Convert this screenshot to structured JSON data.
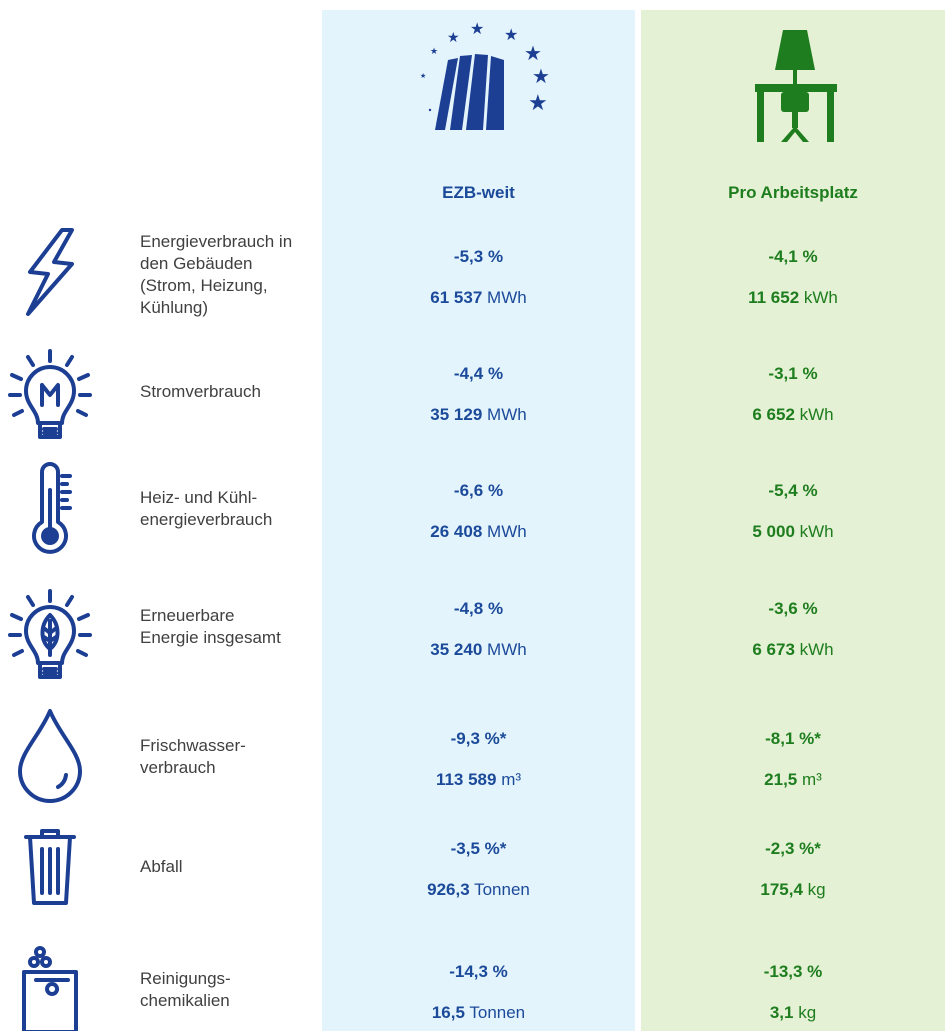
{
  "columns": [
    "EZB-weit",
    "Pro Arbeitsplatz"
  ],
  "rows": [
    {
      "label": [
        "Energieverbrauch in",
        "den Gebäuden",
        "(Strom, Heizung,",
        "Kühlung)"
      ],
      "ezb": {
        "change": "-5,3 %",
        "amount": "61 537",
        "unit": "MWh"
      },
      "per": {
        "change": "-4,1 %",
        "amount": "11 652",
        "unit": "kWh"
      }
    },
    {
      "label": [
        "Stromverbrauch"
      ],
      "ezb": {
        "change": "-4,4 %",
        "amount": "35 129",
        "unit": "MWh"
      },
      "per": {
        "change": "-3,1 %",
        "amount": "6 652",
        "unit": "kWh"
      }
    },
    {
      "label": [
        "Heiz- und Kühl-",
        "energieverbrauch"
      ],
      "ezb": {
        "change": "-6,6 %",
        "amount": "26 408",
        "unit": "MWh"
      },
      "per": {
        "change": "-5,4 %",
        "amount": "5 000",
        "unit": "kWh"
      }
    },
    {
      "label": [
        "Erneuerbare",
        "Energie insgesamt"
      ],
      "ezb": {
        "change": "-4,8 %",
        "amount": "35 240",
        "unit": "MWh"
      },
      "per": {
        "change": "-3,6 %",
        "amount": "6 673",
        "unit": "kWh"
      }
    },
    {
      "label": [
        "Frischwasser-",
        "verbrauch"
      ],
      "ezb": {
        "change": "-9,3 %*",
        "amount": "113 589",
        "unit": "m³"
      },
      "per": {
        "change": "-8,1 %*",
        "amount": "21,5",
        "unit": "m³"
      }
    },
    {
      "label": [
        "Abfall"
      ],
      "ezb": {
        "change": "-3,5 %*",
        "amount": "926,3",
        "unit": "Tonnen"
      },
      "per": {
        "change": "-2,3 %*",
        "amount": "175,4",
        "unit": "kg"
      }
    },
    {
      "label": [
        "Reinigungs-",
        "chemikalien"
      ],
      "ezb": {
        "change": "-14,3 %",
        "amount": "16,5",
        "unit": "Tonnen"
      },
      "per": {
        "change": "-13,3 %",
        "amount": "3,1",
        "unit": "kg"
      }
    }
  ]
}
